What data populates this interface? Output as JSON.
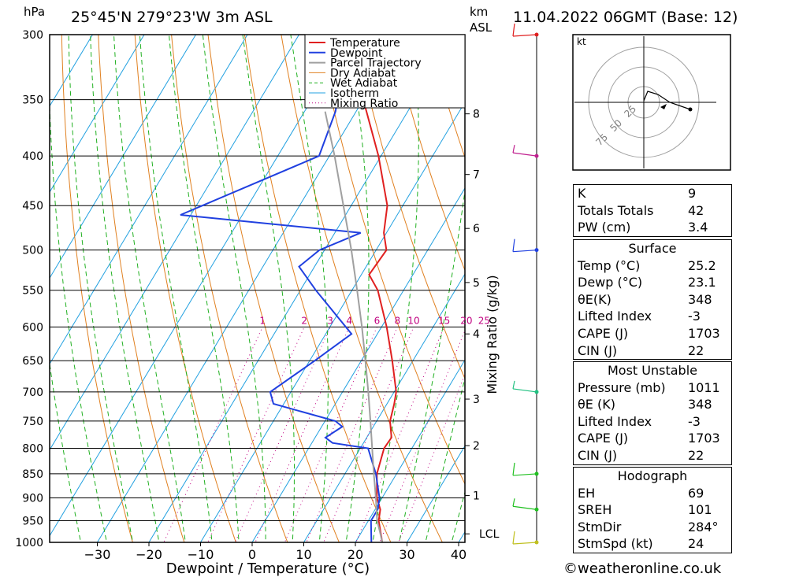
{
  "header": {
    "location": "25°45'N 279°23'W 3m ASL",
    "datetime": "11.04.2022 06GMT (Base: 12)",
    "pressure_unit": "hPa",
    "height_unit_top": "km",
    "height_unit_bottom": "ASL",
    "footer_credit": "©weatheronline.co.uk"
  },
  "legend": [
    "Temperature",
    "Dewpoint",
    "Parcel Trajectory",
    "Dry Adiabat",
    "Wet Adiabat",
    "Isotherm",
    "Mixing Ratio"
  ],
  "colors": {
    "temperature": "#e02020",
    "dewpoint": "#2040e0",
    "parcel": "#a0a0a0",
    "dry_adiabat": "#e08020",
    "wet_adiabat": "#20b020",
    "isotherm": "#20a0e0",
    "mixing_ratio": "#c00080",
    "wind": "#20c020"
  },
  "chart_data": {
    "type": "line",
    "xlabel": "Dewpoint / Temperature (°C)",
    "ylabel": "hPa",
    "y2label": "Mixing Ratio (g/kg)",
    "x_ticks": [
      -30,
      -20,
      -10,
      0,
      10,
      20,
      30,
      40
    ],
    "pressure_levels": [
      300,
      350,
      400,
      450,
      500,
      550,
      600,
      650,
      700,
      750,
      800,
      850,
      900,
      950,
      1000
    ],
    "km_ticks": [
      "8",
      "7",
      "6",
      "5",
      "4",
      "3",
      "2",
      "1",
      "LCL"
    ],
    "mixing_ratio_labels": [
      "1",
      "2",
      "3",
      "4",
      "6",
      "8",
      "10",
      "15",
      "20",
      "25"
    ],
    "series": [
      {
        "name": "Temperature",
        "points": [
          [
            1000,
            25.2
          ],
          [
            950,
            22.0
          ],
          [
            925,
            21.0
          ],
          [
            900,
            19.0
          ],
          [
            850,
            16.2
          ],
          [
            800,
            14.6
          ],
          [
            780,
            14.8
          ],
          [
            750,
            12.6
          ],
          [
            720,
            11.4
          ],
          [
            700,
            10.4
          ],
          [
            650,
            6.0
          ],
          [
            600,
            1.0
          ],
          [
            550,
            -5.0
          ],
          [
            530,
            -8.5
          ],
          [
            500,
            -8.0
          ],
          [
            480,
            -10.5
          ],
          [
            450,
            -13.0
          ],
          [
            400,
            -20.5
          ],
          [
            350,
            -30.0
          ],
          [
            330,
            -29.5
          ],
          [
            300,
            -35.0
          ]
        ]
      },
      {
        "name": "Dewpoint",
        "points": [
          [
            1000,
            23.1
          ],
          [
            950,
            20.5
          ],
          [
            925,
            20.5
          ],
          [
            900,
            19.5
          ],
          [
            850,
            16.0
          ],
          [
            800,
            11.5
          ],
          [
            790,
            4.0
          ],
          [
            780,
            2.0
          ],
          [
            760,
            4.0
          ],
          [
            750,
            2.0
          ],
          [
            720,
            -12.0
          ],
          [
            700,
            -14.0
          ],
          [
            650,
            -9.0
          ],
          [
            610,
            -5.0
          ],
          [
            550,
            -17.0
          ],
          [
            520,
            -23.0
          ],
          [
            500,
            -21.0
          ],
          [
            480,
            -15.0
          ],
          [
            460,
            -52.0
          ],
          [
            400,
            -32.0
          ],
          [
            360,
            -34.0
          ],
          [
            340,
            -36.0
          ],
          [
            300,
            -43.0
          ]
        ]
      },
      {
        "name": "Parcel Trajectory",
        "points": [
          [
            1000,
            25.2
          ],
          [
            975,
            23.5
          ],
          [
            950,
            21.7
          ],
          [
            900,
            18.8
          ],
          [
            850,
            15.6
          ],
          [
            800,
            12.3
          ],
          [
            750,
            8.8
          ],
          [
            700,
            5.0
          ],
          [
            650,
            0.8
          ],
          [
            600,
            -3.8
          ],
          [
            550,
            -9.0
          ],
          [
            500,
            -14.8
          ],
          [
            450,
            -21.5
          ],
          [
            400,
            -29.0
          ],
          [
            360,
            -36.0
          ]
        ]
      }
    ],
    "hodograph": {
      "unit": "kt",
      "ring_labels": [
        "25",
        "50",
        "75"
      ]
    },
    "wind_barbs_pressure": [
      300,
      400,
      500,
      700,
      850,
      925,
      1000
    ]
  },
  "indices": {
    "K": "9",
    "Totals Totals": "42",
    "PW (cm)": "3.4"
  },
  "indices_rows": [
    {
      "label": "K",
      "value": "9"
    },
    {
      "label": "Totals Totals",
      "value": "42"
    },
    {
      "label": "PW (cm)",
      "value": "3.4"
    }
  ],
  "surface": {
    "title": "Surface",
    "rows": [
      {
        "label": "Temp (°C)",
        "value": "25.2"
      },
      {
        "label": "Dewp (°C)",
        "value": "23.1"
      },
      {
        "label": "θE(K)",
        "value": "348"
      },
      {
        "label": "Lifted Index",
        "value": "-3"
      },
      {
        "label": "CAPE (J)",
        "value": "1703"
      },
      {
        "label": "CIN (J)",
        "value": "22"
      }
    ]
  },
  "most_unstable": {
    "title": "Most Unstable",
    "rows": [
      {
        "label": "Pressure (mb)",
        "value": "1011"
      },
      {
        "label": "θE (K)",
        "value": "348"
      },
      {
        "label": "Lifted Index",
        "value": "-3"
      },
      {
        "label": "CAPE (J)",
        "value": "1703"
      },
      {
        "label": "CIN (J)",
        "value": "22"
      }
    ]
  },
  "hodograph_table": {
    "title": "Hodograph",
    "rows": [
      {
        "label": "EH",
        "value": "69"
      },
      {
        "label": "SREH",
        "value": "101"
      },
      {
        "label": "StmDir",
        "value": "284°"
      },
      {
        "label": "StmSpd (kt)",
        "value": "24"
      }
    ]
  }
}
